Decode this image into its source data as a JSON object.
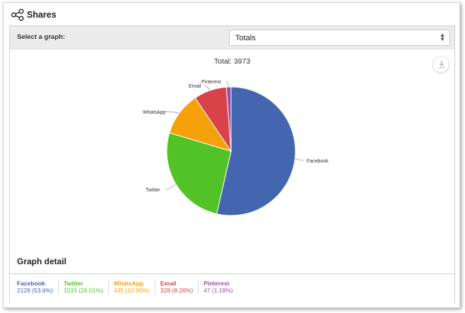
{
  "header": {
    "title": "Shares",
    "icon": "share-icon"
  },
  "selector": {
    "label": "Select a graph:",
    "value": "Totals"
  },
  "chart": {
    "total_text": "Total: 3973",
    "download_icon": "download-icon"
  },
  "chart_data": {
    "type": "pie",
    "title": "Total: 3973",
    "slices": [
      {
        "label": "Facebook",
        "value": 2129,
        "percent": 53.6,
        "color": "#4466b0"
      },
      {
        "label": "Twitter",
        "value": 1033,
        "percent": 26.01,
        "color": "#52c327"
      },
      {
        "label": "WhatsApp",
        "value": 435,
        "percent": 10.95,
        "color": "#f5a10a"
      },
      {
        "label": "Email",
        "value": 328,
        "percent": 8.26,
        "color": "#d8434a"
      },
      {
        "label": "Pinterest",
        "value": 47,
        "percent": 1.18,
        "color": "#9b4da9"
      }
    ]
  },
  "detail": {
    "title": "Graph detail",
    "items": [
      {
        "name": "Facebook",
        "value": "2129 (53.6%)",
        "color": "#4466b0"
      },
      {
        "name": "Twitter",
        "value": "1033 (26.01%)",
        "color": "#52c327"
      },
      {
        "name": "WhatsApp",
        "value": "435 (10.95%)",
        "color": "#f5a10a"
      },
      {
        "name": "Email",
        "value": "328 (8.26%)",
        "color": "#d8434a"
      },
      {
        "name": "Pinterest",
        "value": "47 (1.18%)",
        "color": "#9b4da9"
      }
    ]
  }
}
